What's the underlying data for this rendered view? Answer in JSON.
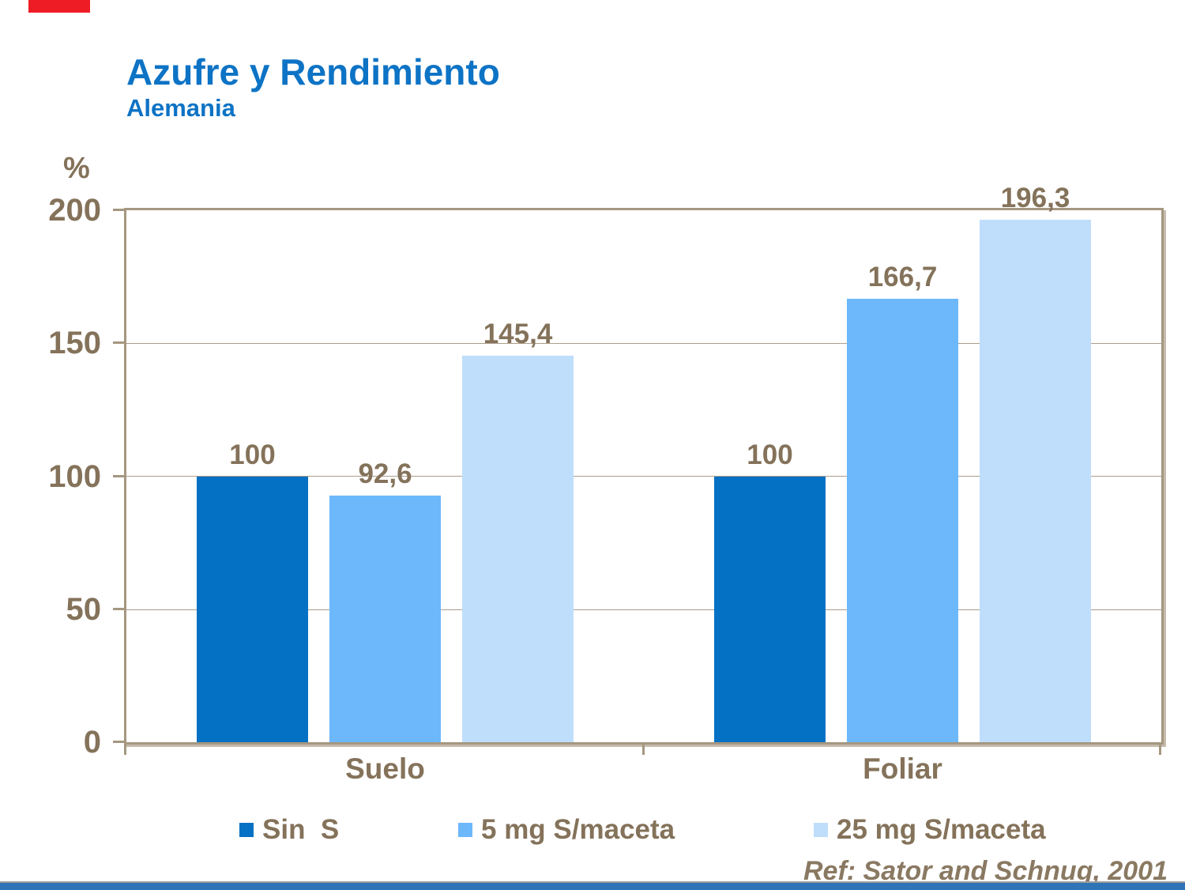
{
  "slide": {
    "title": "Azufre y Rendimiento",
    "subtitle": "Alemania",
    "reference": "Ref: Sator and Schnug, 2001",
    "top_bar_color": "#EE1C25",
    "bottom_bar_color": "#2E74B6"
  },
  "chart_data": {
    "type": "bar",
    "title": "Azufre y Rendimiento",
    "subtitle": "Alemania",
    "ylabel": "%",
    "categories": [
      "Suelo",
      "Foliar"
    ],
    "series": [
      {
        "name": "Sin  S",
        "color": "#0571C4",
        "values": [
          100,
          100
        ]
      },
      {
        "name": "5 mg S/maceta",
        "color": "#6CB8FB",
        "values": [
          92.6,
          166.7
        ]
      },
      {
        "name": "25 mg S/maceta",
        "color": "#BFDEFB",
        "values": [
          145.4,
          196.3
        ]
      }
    ],
    "labels_display": [
      [
        "100",
        "92,6",
        "145,4"
      ],
      [
        "100",
        "166,7",
        "196,3"
      ]
    ],
    "yticks": [
      0,
      50,
      100,
      150,
      200
    ],
    "yticks_display": [
      "200",
      "150",
      "100",
      "50",
      "0"
    ],
    "ylim": [
      0,
      200
    ],
    "grid": true,
    "legend_position": "bottom",
    "reference": "Ref: Sator and Schnug, 2001"
  }
}
